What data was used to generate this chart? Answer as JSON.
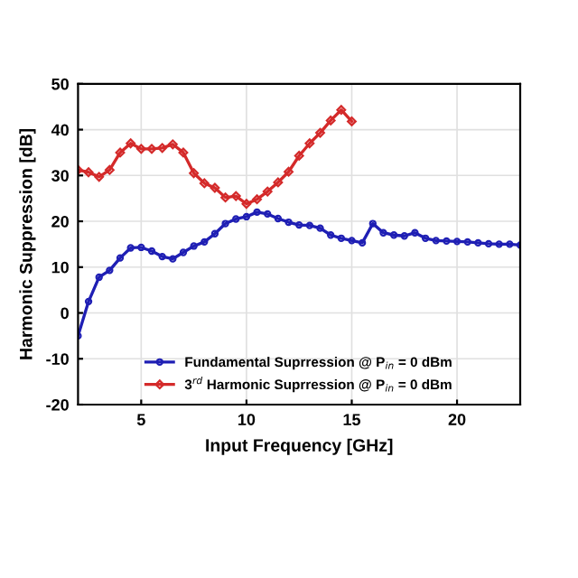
{
  "chart_data": {
    "type": "line",
    "xlabel": "Input Frequency [GHz]",
    "ylabel": "Harmonic Suppression [dB]",
    "xlim": [
      2,
      23
    ],
    "xticks": [
      5,
      10,
      15,
      20
    ],
    "ylim": [
      -20,
      50
    ],
    "yticks": [
      -20,
      -10,
      0,
      10,
      20,
      30,
      40,
      50
    ],
    "grid": true,
    "legend": "bottom",
    "line_style": "solid",
    "series": [
      {
        "name": "Fundamental Suprression @ P$_{in}$ = 0 dBm",
        "color": "#1f1fb4",
        "marker": "circle",
        "x": [
          2,
          2.5,
          3,
          3.5,
          4,
          4.5,
          5,
          5.5,
          6,
          6.5,
          7,
          7.5,
          8,
          8.5,
          9,
          9.5,
          10,
          10.5,
          11,
          11.5,
          12,
          12.5,
          13,
          13.5,
          14,
          14.5,
          15,
          15.5,
          16,
          16.5,
          17,
          17.5,
          18,
          18.5,
          19,
          19.5,
          20,
          20.5,
          21,
          21.5,
          22,
          22.5,
          23
        ],
        "values": [
          -5,
          2.5,
          7.8,
          9.3,
          12,
          14.2,
          14.3,
          13.5,
          12.3,
          11.8,
          13.2,
          14.6,
          15.5,
          17.3,
          19.5,
          20.5,
          21,
          22,
          21.6,
          20.6,
          19.8,
          19.2,
          19.1,
          18.5,
          17,
          16.3,
          15.8,
          15.3,
          19.5,
          17.5,
          17,
          16.8,
          17.5,
          16.3,
          15.8,
          15.7,
          15.6,
          15.5,
          15.3,
          15.1,
          15,
          15,
          14.8
        ]
      },
      {
        "name": "3$^{rd}$ Harmonic Suprression @ P$_{in}$ = 0 dBm",
        "color": "#d42a2a",
        "marker": "diamond",
        "x": [
          2,
          2.5,
          3,
          3.5,
          4,
          4.5,
          5,
          5.5,
          6,
          6.5,
          7,
          7.5,
          8,
          8.5,
          9,
          9.5,
          10,
          10.5,
          11,
          11.5,
          12,
          12.5,
          13,
          13.5,
          14,
          14.5,
          15
        ],
        "values": [
          31.2,
          30.7,
          29.7,
          31.2,
          35,
          37,
          35.8,
          35.8,
          36,
          36.8,
          35,
          30.5,
          28.3,
          27.3,
          25.2,
          25.5,
          23.8,
          24.8,
          26.5,
          28.5,
          30.8,
          34.3,
          37,
          39.3,
          42,
          44.3,
          41.8
        ]
      }
    ]
  }
}
